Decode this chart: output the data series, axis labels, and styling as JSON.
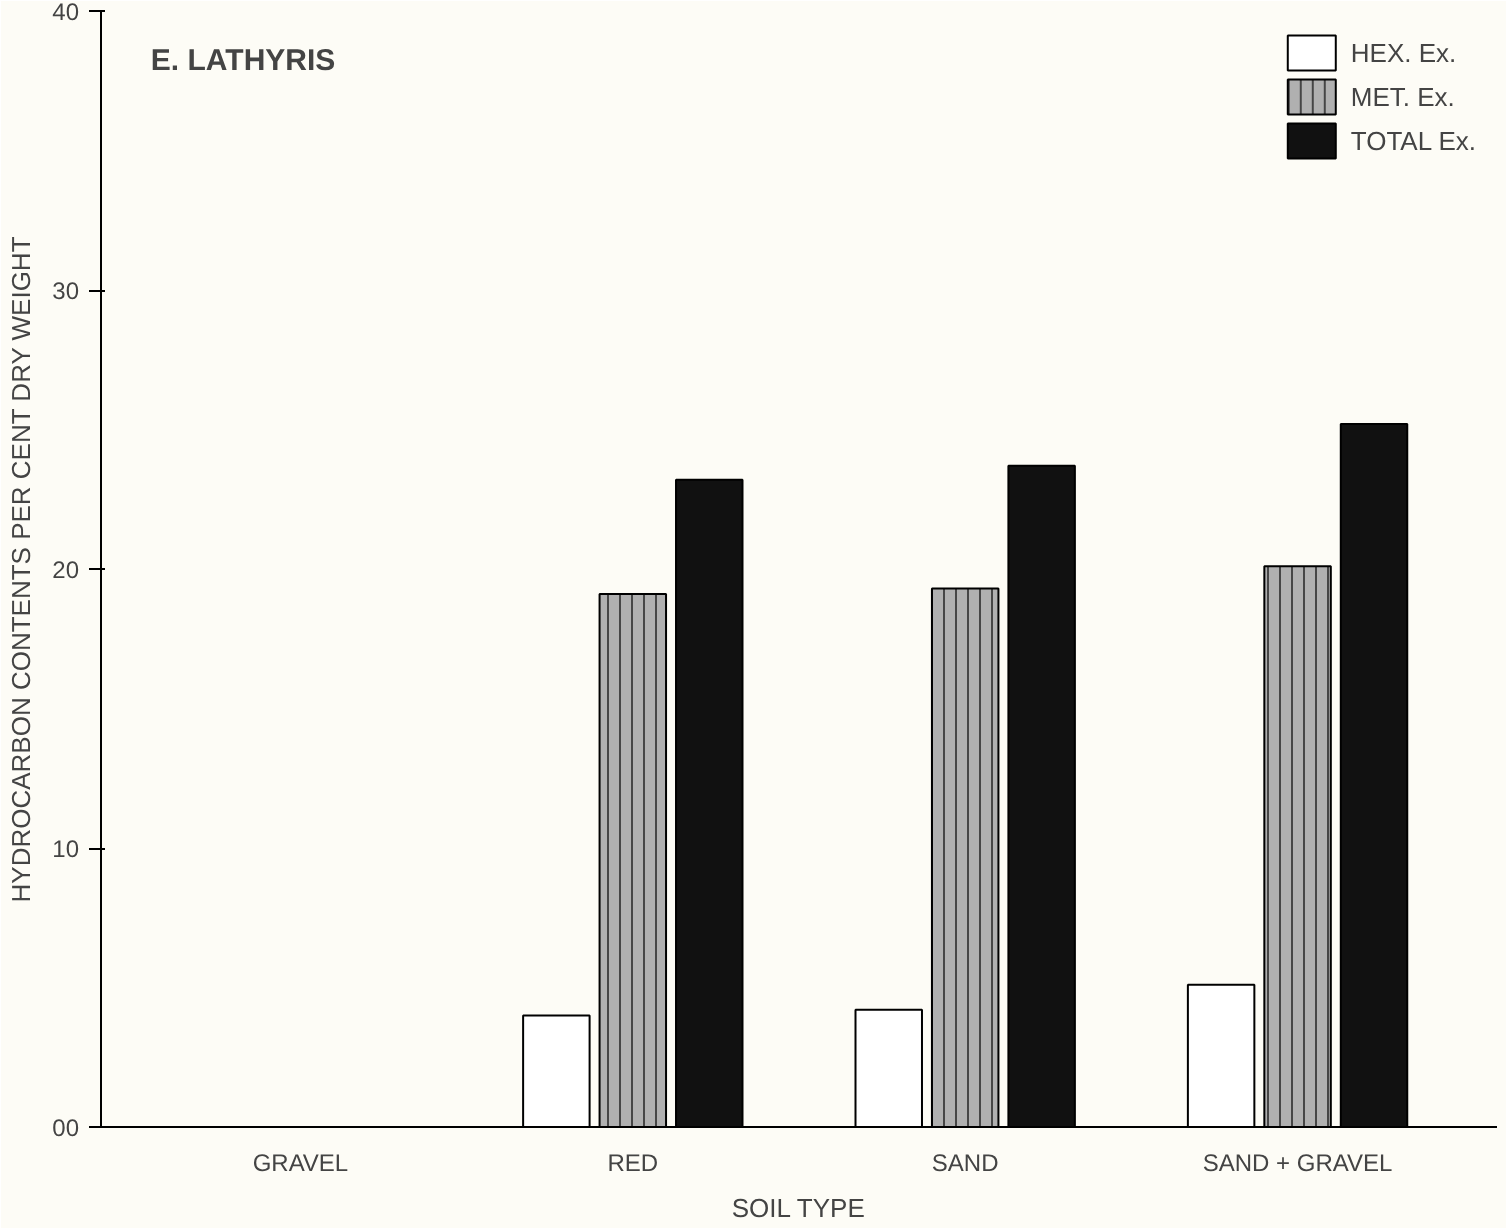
{
  "chart_data": {
    "type": "bar",
    "title": "E. LATHYRIS",
    "xlabel": "SOIL TYPE",
    "ylabel": "HYDROCARBON CONTENTS PER CENT DRY WEIGHT",
    "categories": [
      "GRAVEL",
      "RED",
      "SAND",
      "SAND + GRAVEL"
    ],
    "series": [
      {
        "name": "HEX. Ex.",
        "color": "#ffffff",
        "values": [
          null,
          4.0,
          4.2,
          5.1
        ]
      },
      {
        "name": "MET. Ex.",
        "color": "#b0b0b0",
        "values": [
          null,
          19.1,
          19.3,
          20.1
        ]
      },
      {
        "name": "TOTAL Ex.",
        "color": "#111111",
        "values": [
          null,
          23.2,
          23.7,
          25.2
        ]
      }
    ],
    "ylim": [
      0,
      40
    ],
    "yticks": [
      {
        "value": 0,
        "label": "00"
      },
      10,
      20,
      30,
      40
    ],
    "grid": false,
    "legend": "top right"
  }
}
